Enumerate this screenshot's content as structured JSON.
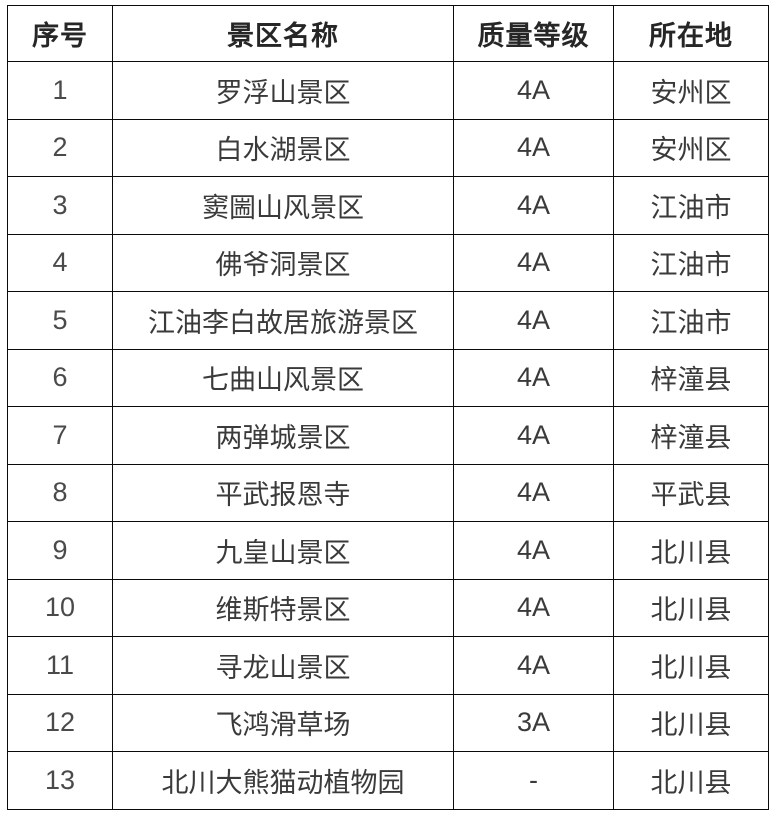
{
  "colors": {
    "background": "#ffffff",
    "border": "#0a0a0a",
    "header_text": "#262626",
    "body_text": "#3a3a3a"
  },
  "chart_data": {
    "type": "table",
    "title": "",
    "columns": [
      "序号",
      "景区名称",
      "质量等级",
      "所在地"
    ],
    "rows": [
      {
        "index": "1",
        "name": "罗浮山景区",
        "grade": "4A",
        "location": "安州区"
      },
      {
        "index": "2",
        "name": "白水湖景区",
        "grade": "4A",
        "location": "安州区"
      },
      {
        "index": "3",
        "name": "窦圌山风景区",
        "grade": "4A",
        "location": "江油市"
      },
      {
        "index": "4",
        "name": "佛爷洞景区",
        "grade": "4A",
        "location": "江油市"
      },
      {
        "index": "5",
        "name": "江油李白故居旅游景区",
        "grade": "4A",
        "location": "江油市"
      },
      {
        "index": "6",
        "name": "七曲山风景区",
        "grade": "4A",
        "location": "梓潼县"
      },
      {
        "index": "7",
        "name": "两弹城景区",
        "grade": "4A",
        "location": "梓潼县"
      },
      {
        "index": "8",
        "name": "平武报恩寺",
        "grade": "4A",
        "location": "平武县"
      },
      {
        "index": "9",
        "name": "九皇山景区",
        "grade": "4A",
        "location": "北川县"
      },
      {
        "index": "10",
        "name": "维斯特景区",
        "grade": "4A",
        "location": "北川县"
      },
      {
        "index": "11",
        "name": "寻龙山景区",
        "grade": "4A",
        "location": "北川县"
      },
      {
        "index": "12",
        "name": "飞鸿滑草场",
        "grade": "3A",
        "location": "北川县"
      },
      {
        "index": "13",
        "name": "北川大熊猫动植物园",
        "grade": "-",
        "location": "北川县"
      }
    ]
  }
}
